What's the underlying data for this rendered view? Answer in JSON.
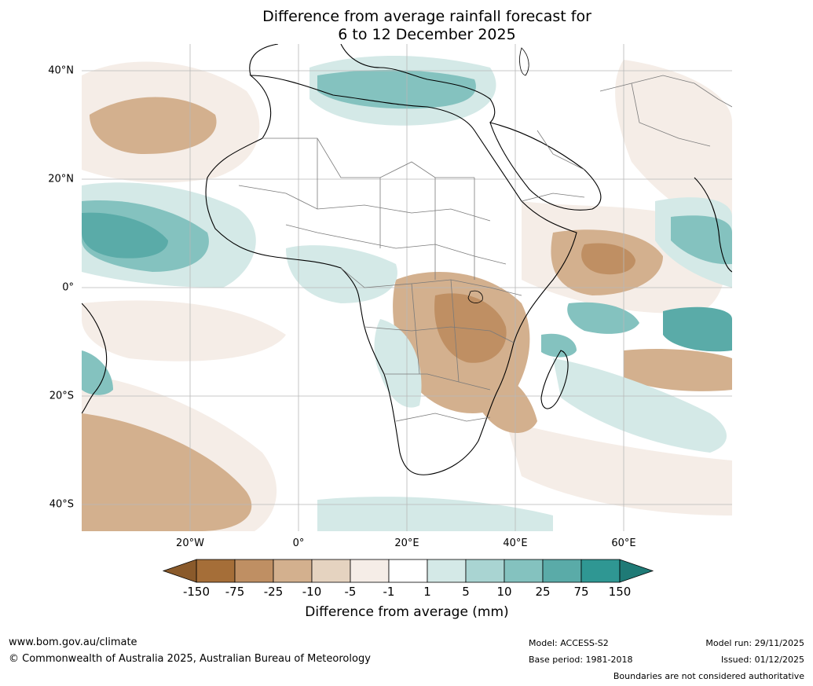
{
  "title": {
    "line1": "Difference from average rainfall forecast for",
    "line2": "6 to 12 December 2025"
  },
  "map": {
    "lat_labels": [
      "40°N",
      "20°N",
      "0°",
      "20°S",
      "40°S"
    ],
    "lon_labels": [
      "20°W",
      "0°",
      "20°E",
      "40°E",
      "60°E"
    ]
  },
  "colorbar": {
    "tick_labels": [
      "-150",
      "-75",
      "-25",
      "-10",
      "-5",
      "-1",
      "1",
      "5",
      "10",
      "25",
      "75",
      "150"
    ],
    "colors": [
      "#a56e38",
      "#bf8f63",
      "#d3b08e",
      "#e5d3c0",
      "#f5ede7",
      "#ffffff",
      "#d4e9e7",
      "#a9d4d2",
      "#84c2bf",
      "#5aaba8",
      "#2f9793"
    ],
    "under_color": "#8a5a2b",
    "over_color": "#1f7a76",
    "label": "Difference from average (mm)"
  },
  "footer": {
    "website": "www.bom.gov.au/climate",
    "copyright": "© Commonwealth of Australia 2025, Australian Bureau of Meteorology",
    "model": "Model: ACCESS-S2",
    "base_period": "Base period: 1981-2018",
    "model_run": "Model run: 29/11/2025",
    "issued": "Issued: 01/12/2025",
    "disclaimer": "Boundaries are not considered authoritative"
  }
}
